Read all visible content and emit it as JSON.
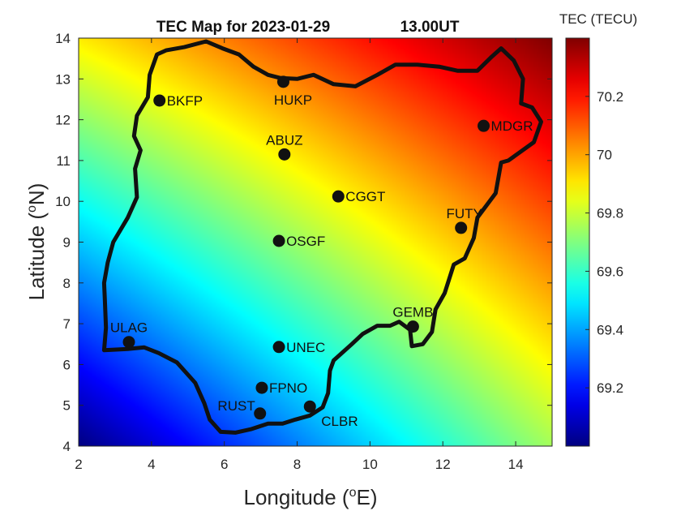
{
  "chart_data": {
    "type": "heatmap",
    "title": "TEC Map for 2023-01-29",
    "title_time": "13.00UT",
    "xlabel": "Longitude (",
    "xlabel_sup": "o",
    "xlabel_tail": "E)",
    "ylabel": "Latitude (",
    "ylabel_sup": "o",
    "ylabel_tail": "N)",
    "xlim": [
      2,
      15
    ],
    "ylim": [
      4,
      14
    ],
    "xticks": [
      2,
      4,
      6,
      8,
      10,
      12,
      14
    ],
    "yticks": [
      4,
      5,
      6,
      7,
      8,
      9,
      10,
      11,
      12,
      13,
      14
    ],
    "colorbar": {
      "label": "TEC (TECU)",
      "range": [
        69.0,
        70.4
      ],
      "ticks": [
        69.2,
        69.4,
        69.6,
        69.8,
        70,
        70.2
      ],
      "colormap": "jet"
    },
    "field": {
      "description": "smooth gradient increasing toward north-east",
      "corner_values": {
        "sw": 69.0,
        "se": 69.75,
        "nw": 69.9,
        "ne": 70.4
      }
    },
    "stations": [
      {
        "name": "BKFP",
        "lon": 4.22,
        "lat": 12.47,
        "label_pos": "right"
      },
      {
        "name": "HUKP",
        "lon": 7.62,
        "lat": 12.93,
        "label_pos": "below"
      },
      {
        "name": "ABUZ",
        "lon": 7.65,
        "lat": 11.15,
        "label_pos": "above"
      },
      {
        "name": "MDGR",
        "lon": 13.12,
        "lat": 11.85,
        "label_pos": "right"
      },
      {
        "name": "CGGT",
        "lon": 9.13,
        "lat": 10.12,
        "label_pos": "right"
      },
      {
        "name": "FUTY",
        "lon": 12.5,
        "lat": 9.35,
        "label_pos": "above-left"
      },
      {
        "name": "OSGF",
        "lon": 7.5,
        "lat": 9.03,
        "label_pos": "right"
      },
      {
        "name": "GEMB",
        "lon": 11.18,
        "lat": 6.93,
        "label_pos": "above"
      },
      {
        "name": "ULAG",
        "lon": 3.38,
        "lat": 6.55,
        "label_pos": "above"
      },
      {
        "name": "UNEC",
        "lon": 7.5,
        "lat": 6.43,
        "label_pos": "right"
      },
      {
        "name": "FPNO",
        "lon": 7.03,
        "lat": 5.43,
        "label_pos": "right"
      },
      {
        "name": "RUST",
        "lon": 6.98,
        "lat": 4.8,
        "label_pos": "left"
      },
      {
        "name": "CLBR",
        "lon": 8.35,
        "lat": 4.97,
        "label_pos": "below-right"
      }
    ],
    "boundary": [
      [
        2.7,
        6.35
      ],
      [
        2.75,
        6.9
      ],
      [
        2.72,
        7.6
      ],
      [
        2.7,
        8.0
      ],
      [
        2.8,
        8.5
      ],
      [
        2.95,
        9.0
      ],
      [
        3.35,
        9.6
      ],
      [
        3.6,
        10.1
      ],
      [
        3.55,
        10.8
      ],
      [
        3.7,
        11.25
      ],
      [
        3.52,
        11.6
      ],
      [
        3.6,
        12.1
      ],
      [
        3.9,
        12.55
      ],
      [
        3.95,
        13.1
      ],
      [
        4.15,
        13.6
      ],
      [
        4.4,
        13.7
      ],
      [
        4.9,
        13.78
      ],
      [
        5.5,
        13.92
      ],
      [
        5.95,
        13.75
      ],
      [
        6.4,
        13.6
      ],
      [
        6.8,
        13.3
      ],
      [
        7.2,
        13.1
      ],
      [
        7.55,
        13.02
      ],
      [
        8.0,
        13.0
      ],
      [
        8.45,
        13.1
      ],
      [
        9.0,
        12.87
      ],
      [
        9.6,
        12.82
      ],
      [
        10.2,
        13.1
      ],
      [
        10.7,
        13.35
      ],
      [
        11.3,
        13.35
      ],
      [
        11.9,
        13.3
      ],
      [
        12.4,
        13.2
      ],
      [
        12.95,
        13.2
      ],
      [
        13.35,
        13.55
      ],
      [
        13.6,
        13.75
      ],
      [
        13.95,
        13.45
      ],
      [
        14.2,
        13.0
      ],
      [
        14.15,
        12.4
      ],
      [
        14.45,
        12.3
      ],
      [
        14.7,
        11.95
      ],
      [
        14.5,
        11.45
      ],
      [
        13.8,
        11.0
      ],
      [
        13.6,
        10.95
      ],
      [
        13.45,
        10.2
      ],
      [
        13.2,
        9.9
      ],
      [
        12.95,
        9.6
      ],
      [
        12.85,
        9.1
      ],
      [
        12.6,
        8.6
      ],
      [
        12.3,
        8.45
      ],
      [
        12.05,
        7.75
      ],
      [
        11.8,
        7.35
      ],
      [
        11.7,
        6.8
      ],
      [
        11.45,
        6.5
      ],
      [
        11.15,
        6.45
      ],
      [
        11.1,
        6.85
      ],
      [
        10.8,
        7.05
      ],
      [
        10.55,
        6.95
      ],
      [
        10.2,
        6.95
      ],
      [
        9.8,
        6.75
      ],
      [
        9.5,
        6.5
      ],
      [
        9.0,
        6.1
      ],
      [
        8.9,
        5.85
      ],
      [
        8.85,
        5.3
      ],
      [
        8.7,
        4.95
      ],
      [
        8.35,
        4.75
      ],
      [
        7.95,
        4.65
      ],
      [
        7.6,
        4.55
      ],
      [
        7.2,
        4.55
      ],
      [
        6.75,
        4.42
      ],
      [
        6.3,
        4.33
      ],
      [
        5.9,
        4.35
      ],
      [
        5.6,
        4.65
      ],
      [
        5.45,
        5.05
      ],
      [
        5.2,
        5.55
      ],
      [
        4.7,
        6.05
      ],
      [
        4.2,
        6.28
      ],
      [
        3.8,
        6.42
      ],
      [
        3.35,
        6.38
      ],
      [
        2.7,
        6.35
      ]
    ]
  }
}
